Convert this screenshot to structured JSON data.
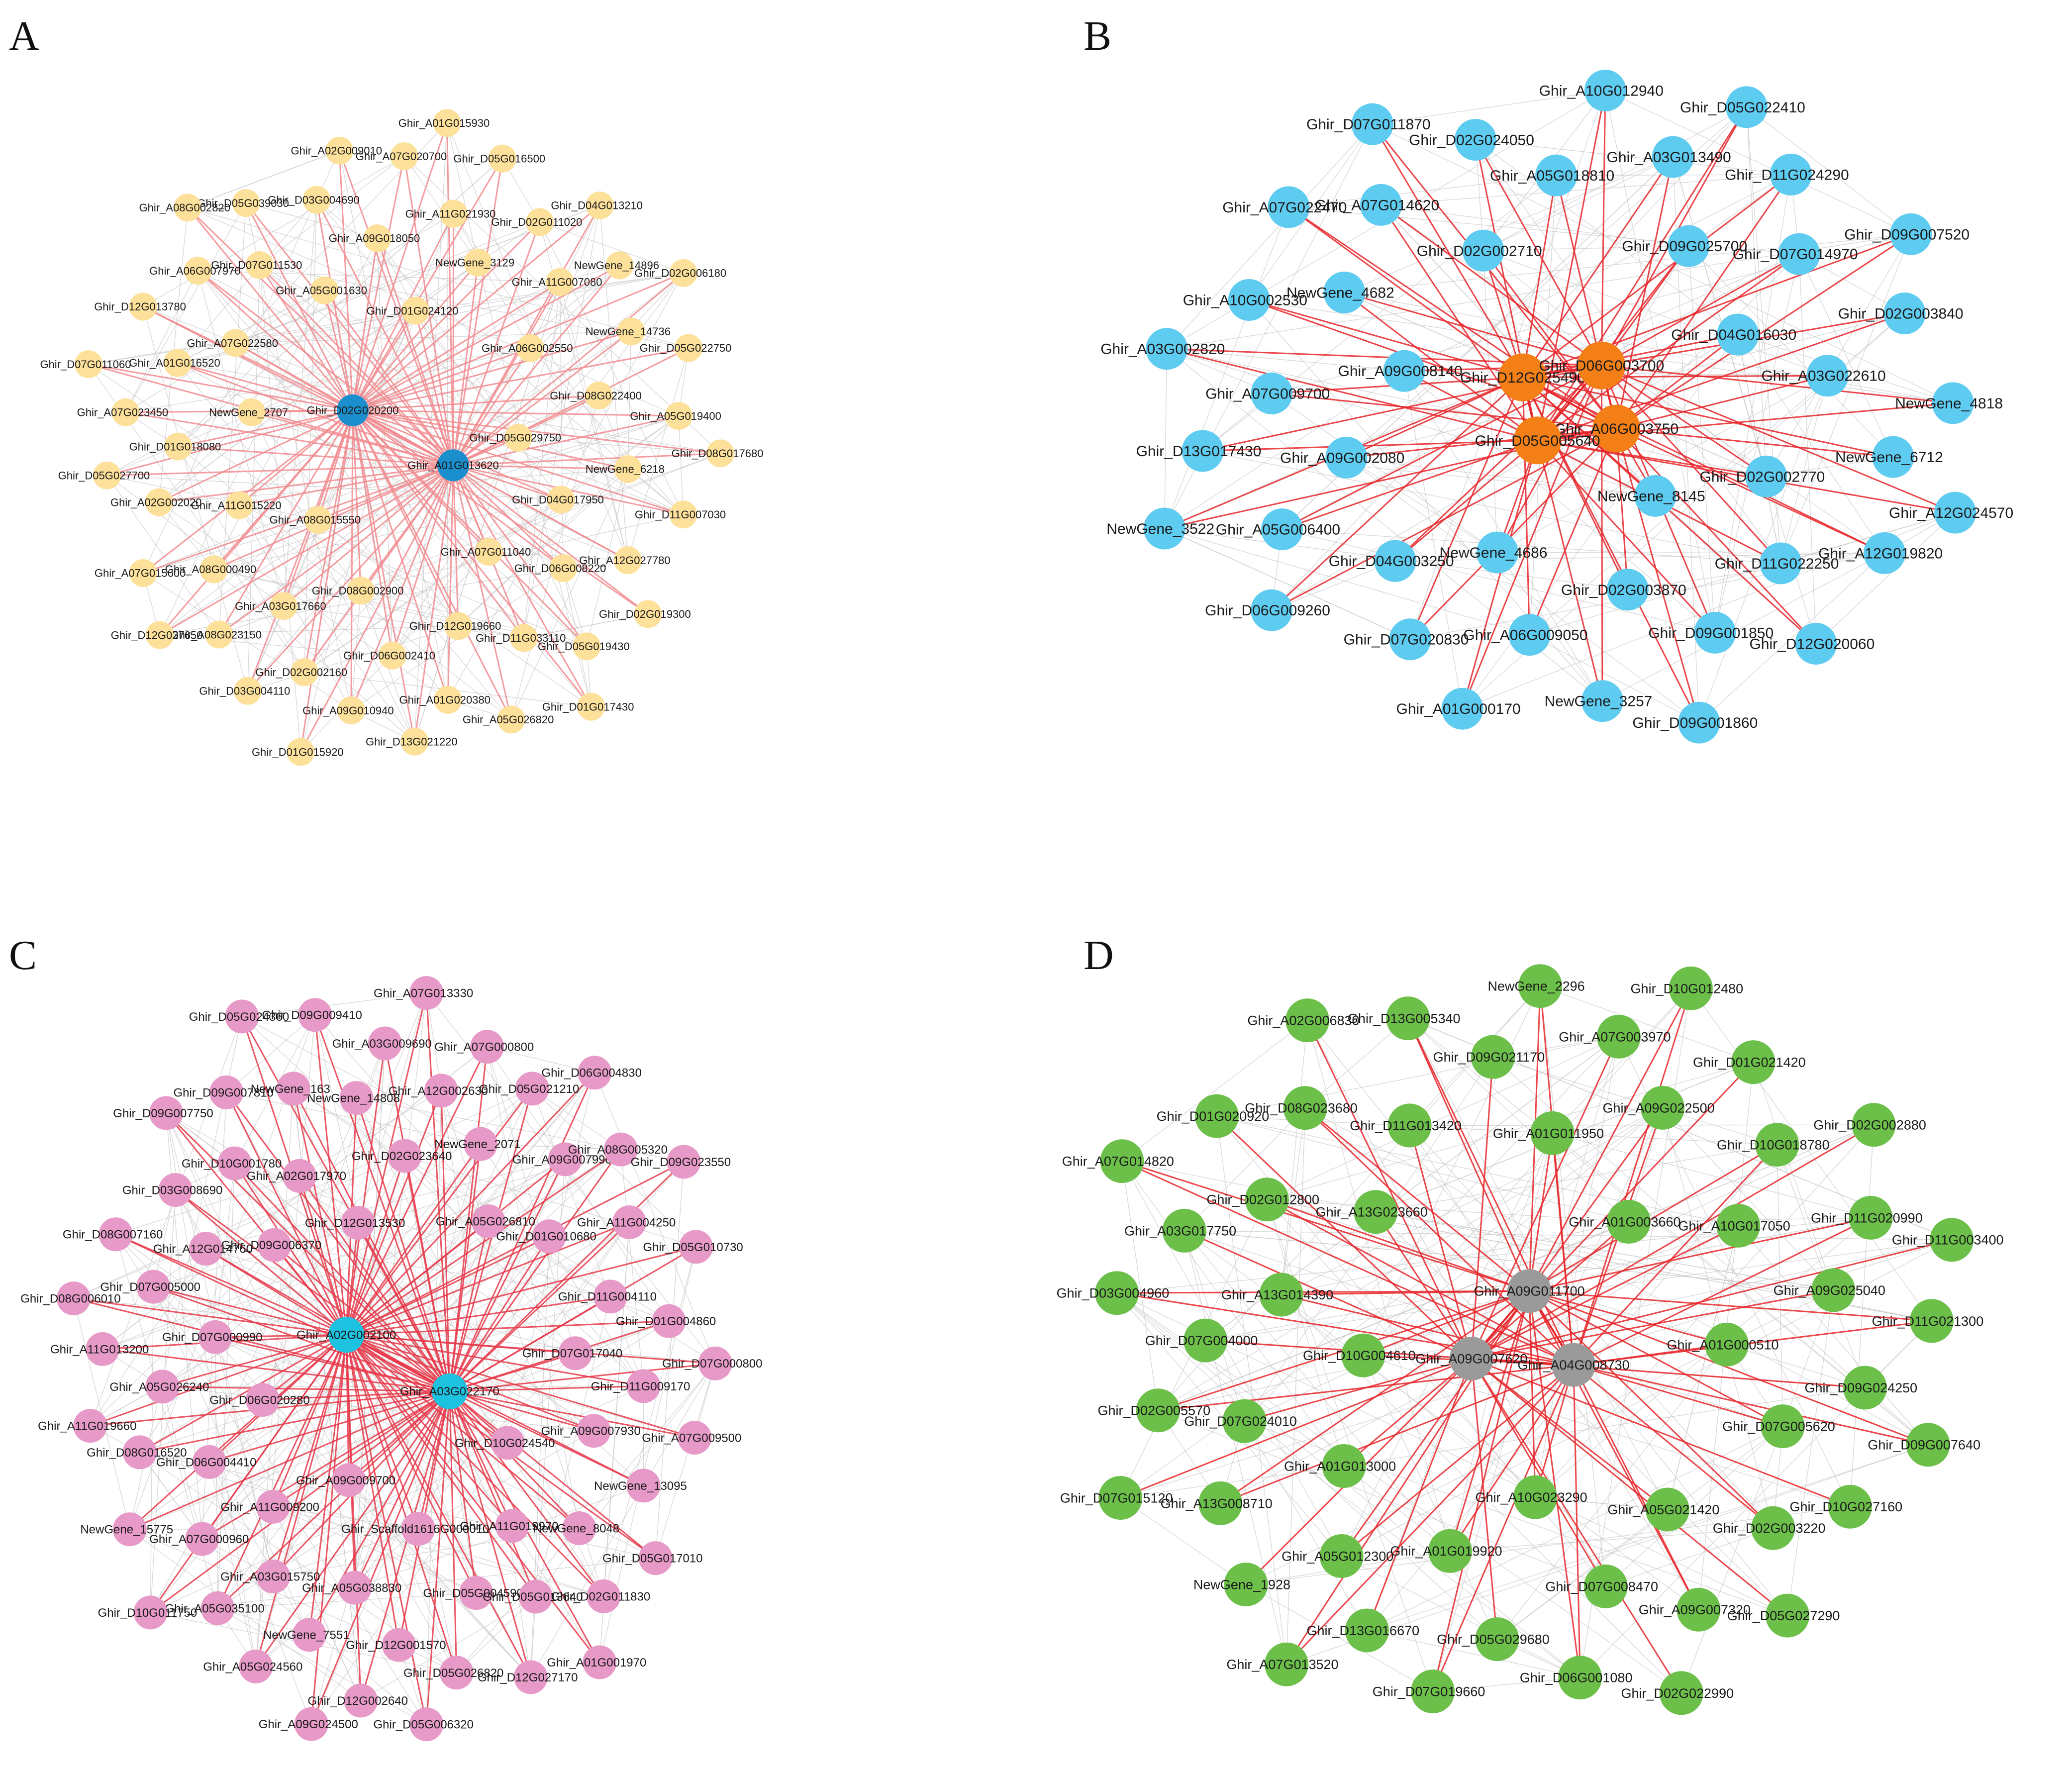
{
  "panels": [
    {
      "letter": "A",
      "hub_color": "#1b8fce",
      "node_color": "#fde19a",
      "edge_color": "#f28b8f",
      "hubs": [
        "Ghir_A01G013620",
        "Ghir_D02G020200"
      ],
      "nodes": [
        "Ghir_D05G029750",
        "Ghir_A08G015550",
        "Ghir_D01G024120",
        "Ghir_A07G011040",
        "NewGene_2707",
        "Ghir_A06G002550",
        "Ghir_D08G002900",
        "Ghir_A05G001630",
        "Ghir_D04G017950",
        "Ghir_A11G015220",
        "NewGene_3129",
        "Ghir_D12G019660",
        "Ghir_A07G022580",
        "Ghir_D08G022400",
        "Ghir_A03G017660",
        "Ghir_A09G018050",
        "Ghir_D06G008220",
        "Ghir_D01G018080",
        "Ghir_A11G007080",
        "Ghir_D06G002410",
        "Ghir_D07G011530",
        "NewGene_6218",
        "Ghir_A08G000490",
        "Ghir_A11G021930",
        "Ghir_D11G033110",
        "Ghir_A01G016520",
        "NewGene_14736",
        "Ghir_D02G002160",
        "Ghir_D03G004690",
        "Ghir_A12G027780",
        "Ghir_A02G002020",
        "Ghir_D02G011020",
        "Ghir_A01G020380",
        "Ghir_A06G007970",
        "Ghir_A05G019400",
        "Ghir_A08G023150",
        "Ghir_A07G020700",
        "Ghir_D05G019430",
        "Ghir_A07G023450",
        "NewGene_14896",
        "Ghir_A09G010940",
        "Ghir_D05G039030",
        "Ghir_D11G007030",
        "Ghir_A07G015600",
        "Ghir_D05G016500",
        "Ghir_A05G026820",
        "Ghir_D12G013780",
        "Ghir_D05G022750",
        "Ghir_D03G004110",
        "Ghir_A02G009010",
        "Ghir_D02G019300",
        "Ghir_D05G027700",
        "Ghir_D04G013210",
        "Ghir_D13G021220",
        "Ghir_A08G002820",
        "Ghir_D08G017680",
        "Ghir_D12G027650",
        "Ghir_A01G015930",
        "Ghir_D01G017430",
        "Ghir_D07G011060",
        "Ghir_D02G006180",
        "Ghir_D01G015920"
      ]
    },
    {
      "letter": "B",
      "hub_color": "#f57f17",
      "node_color": "#5ecbf0",
      "edge_color": "#e8262a",
      "hubs": [
        "Ghir_A06G003750",
        "Ghir_D05G005640",
        "Ghir_D12G025490",
        "Ghir_D06G003700"
      ],
      "nodes": [
        "NewGene_8145",
        "Ghir_A09G008140",
        "Ghir_D04G016030",
        "NewGene_4686",
        "Ghir_D02G002710",
        "Ghir_D02G002770",
        "Ghir_A09G002080",
        "Ghir_D09G025700",
        "Ghir_D02G003870",
        "NewGene_4682",
        "Ghir_A03G022610",
        "Ghir_D04G003250",
        "Ghir_A05G018810",
        "Ghir_D11G022250",
        "Ghir_A07G009700",
        "Ghir_D07G014970",
        "Ghir_A06G009050",
        "Ghir_A07G014620",
        "NewGene_6712",
        "Ghir_A05G006400",
        "Ghir_A03G013490",
        "Ghir_D09G001850",
        "Ghir_A10G002530",
        "Ghir_D02G003840",
        "Ghir_D07G020830",
        "Ghir_D02G024050",
        "Ghir_A12G019820",
        "Ghir_D13G017430",
        "Ghir_D11G024290",
        "NewGene_3257",
        "Ghir_A07G022470",
        "NewGene_4818",
        "Ghir_D06G009260",
        "Ghir_A10G012940",
        "Ghir_D12G020060",
        "Ghir_A03G002820",
        "Ghir_D09G007520",
        "Ghir_A01G000170",
        "Ghir_D07G011870",
        "Ghir_A12G024570",
        "NewGene_3522",
        "Ghir_D05G022410",
        "Ghir_D09G001860"
      ]
    },
    {
      "letter": "C",
      "hub_color": "#1cc2e0",
      "node_color": "#e79ac8",
      "edge_color": "#e8384a",
      "hubs": [
        "Ghir_A03G022170",
        "Ghir_A02G002100"
      ],
      "nodes": [
        "Ghir_A09G009700",
        "Ghir_D12G013530",
        "Ghir_D10G024540",
        "Ghir_D06G020280",
        "Ghir_A05G026810",
        "Ghir_Scaffold1616G000010",
        "Ghir_D09G006370",
        "Ghir_D07G017040",
        "Ghir_A11G009200",
        "Ghir_D02G023640",
        "Ghir_A11G019970",
        "Ghir_D07G000990",
        "Ghir_D01G010680",
        "Ghir_A05G038830",
        "Ghir_A02G017970",
        "Ghir_A09G007930",
        "Ghir_D06G004410",
        "NewGene_2071",
        "Ghir_D05G004590",
        "Ghir_A12G014760",
        "Ghir_D11G004110",
        "Ghir_A03G015750",
        "NewGene_14808",
        "NewGene_8048",
        "Ghir_A05G026240",
        "Ghir_A09G007990",
        "Ghir_D12G001570",
        "Ghir_D10G001780",
        "Ghir_D11G009170",
        "Ghir_A07G000960",
        "Ghir_A12G002630",
        "Ghir_D05G013640",
        "Ghir_D07G005000",
        "Ghir_A11G004250",
        "NewGene_7551",
        "NewGene_163",
        "NewGene_13095",
        "Ghir_D08G016520",
        "Ghir_D05G021210",
        "Ghir_D05G026820",
        "Ghir_D03G008690",
        "Ghir_D01G004860",
        "Ghir_A05G035100",
        "Ghir_A03G009690",
        "Ghir_D02G011830",
        "Ghir_A11G013200",
        "Ghir_A08G005320",
        "Ghir_D12G002640",
        "Ghir_D09G007810",
        "Ghir_A07G009500",
        "NewGene_15775",
        "Ghir_A07G000800",
        "Ghir_D12G027170",
        "Ghir_D08G007160",
        "Ghir_D05G010730",
        "Ghir_A05G024560",
        "Ghir_D09G009410",
        "Ghir_D05G017010",
        "Ghir_A11G019660",
        "Ghir_D06G004830",
        "Ghir_D05G006320",
        "Ghir_D09G007750",
        "Ghir_D07G000800",
        "Ghir_D10G011750",
        "Ghir_A07G013330",
        "Ghir_A01G001970",
        "Ghir_D08G006010",
        "Ghir_D09G023550",
        "Ghir_A09G024500",
        "Ghir_D05G024360"
      ]
    },
    {
      "letter": "D",
      "hub_color": "#9a9a9a",
      "node_color": "#6cc04a",
      "edge_color": "#e8262a",
      "hubs": [
        "Ghir_A04G008730",
        "Ghir_A09G007620",
        "Ghir_A09G011700"
      ],
      "nodes": [
        "Ghir_D10G004610",
        "Ghir_A01G003660",
        "Ghir_A10G023290",
        "Ghir_A13G023660",
        "Ghir_A01G000510",
        "Ghir_A01G013000",
        "Ghir_A01G011950",
        "Ghir_A05G021420",
        "Ghir_A13G014390",
        "Ghir_A10G017050",
        "Ghir_A01G019920",
        "Ghir_D11G013420",
        "Ghir_D07G005620",
        "Ghir_D07G024010",
        "Ghir_A09G022500",
        "Ghir_D07G008470",
        "Ghir_D02G012800",
        "Ghir_A09G025040",
        "Ghir_A05G012300",
        "Ghir_D09G021170",
        "Ghir_D02G003220",
        "Ghir_D07G004000",
        "Ghir_D10G018780",
        "Ghir_D05G029680",
        "Ghir_D08G023680",
        "Ghir_D09G024250",
        "Ghir_A13G008710",
        "Ghir_A07G003970",
        "Ghir_A09G007320",
        "Ghir_A03G017750",
        "Ghir_D11G020990",
        "Ghir_D13G016670",
        "Ghir_D13G005340",
        "Ghir_D10G027160",
        "Ghir_D02G005570",
        "Ghir_D01G021420",
        "Ghir_D06G001080",
        "Ghir_D01G020920",
        "Ghir_D11G021300",
        "NewGene_1928",
        "NewGene_2296",
        "Ghir_D05G027290",
        "Ghir_D03G004960",
        "Ghir_D02G002880",
        "Ghir_D07G019660",
        "Ghir_A02G006830",
        "Ghir_D09G007640",
        "Ghir_D07G015120",
        "Ghir_D10G012480",
        "Ghir_D02G022990",
        "Ghir_A07G014820",
        "Ghir_D11G003400",
        "Ghir_A07G013520"
      ]
    }
  ]
}
